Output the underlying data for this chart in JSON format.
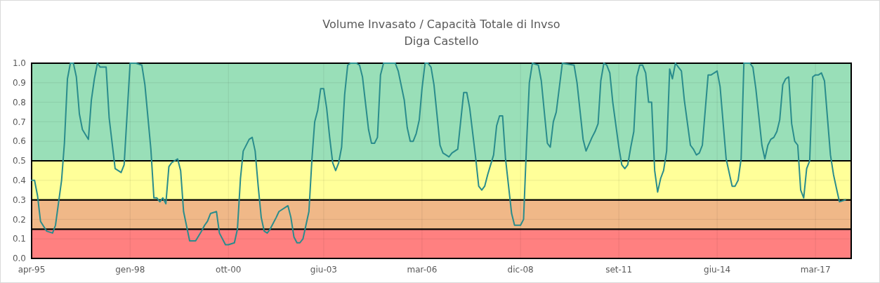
{
  "chart_data": {
    "type": "line",
    "title": "Volume Invasato / Capacità Totale di Invso",
    "subtitle": "Diga Castello",
    "x": [
      "1995-04",
      "1995-05",
      "1995-06",
      "1995-07",
      "1995-09",
      "1995-11",
      "1995-12",
      "1996-02",
      "1996-03",
      "1996-04",
      "1996-05",
      "1996-06",
      "1996-07",
      "1996-08",
      "1996-09",
      "1996-11",
      "1996-12",
      "1997-01",
      "1997-02",
      "1997-03",
      "1997-04",
      "1997-05",
      "1997-06",
      "1997-08",
      "1997-09",
      "1997-10",
      "1997-11",
      "1998-01",
      "1998-03",
      "1998-05",
      "1998-06",
      "1998-08",
      "1998-09",
      "1998-10",
      "1998-11",
      "1998-12",
      "1999-01",
      "1999-02",
      "1999-03",
      "1999-05",
      "1999-06",
      "1999-07",
      "1999-09",
      "1999-11",
      "2000-01",
      "2000-02",
      "2000-03",
      "2000-04",
      "2000-06",
      "2000-07",
      "2000-09",
      "2000-10",
      "2000-12",
      "2001-01",
      "2001-02",
      "2001-03",
      "2001-05",
      "2001-06",
      "2001-07",
      "2001-08",
      "2001-09",
      "2001-10",
      "2001-11",
      "2001-12",
      "2002-02",
      "2002-03",
      "2002-06",
      "2002-07",
      "2002-08",
      "2002-09",
      "2002-10",
      "2002-11",
      "2003-01",
      "2003-02",
      "2003-03",
      "2003-04",
      "2003-05",
      "2003-06",
      "2003-07",
      "2003-08",
      "2003-09",
      "2003-10",
      "2003-11",
      "2003-12",
      "2004-01",
      "2004-02",
      "2004-03",
      "2004-05",
      "2004-06",
      "2004-07",
      "2004-09",
      "2004-10",
      "2004-11",
      "2004-12",
      "2005-01",
      "2005-02",
      "2005-06",
      "2005-07",
      "2005-09",
      "2005-10",
      "2005-11",
      "2005-12",
      "2006-01",
      "2006-02",
      "2006-03",
      "2006-04",
      "2006-05",
      "2006-06",
      "2006-07",
      "2006-09",
      "2006-10",
      "2006-11",
      "2006-12",
      "2007-01",
      "2007-03",
      "2007-05",
      "2007-06",
      "2007-07",
      "2007-09",
      "2007-10",
      "2007-11",
      "2007-12",
      "2008-01",
      "2008-03",
      "2008-04",
      "2008-05",
      "2008-06",
      "2008-07",
      "2008-09",
      "2008-10",
      "2008-12",
      "2009-01",
      "2009-02",
      "2009-03",
      "2009-04",
      "2009-06",
      "2009-07",
      "2009-09",
      "2009-10",
      "2009-11",
      "2009-12",
      "2010-02",
      "2010-06",
      "2010-07",
      "2010-09",
      "2010-10",
      "2010-12",
      "2011-01",
      "2011-02",
      "2011-03",
      "2011-04",
      "2011-05",
      "2011-06",
      "2011-07",
      "2011-09",
      "2011-10",
      "2011-11",
      "2011-12",
      "2012-01",
      "2012-02",
      "2012-03",
      "2012-04",
      "2012-05",
      "2012-06",
      "2012-07",
      "2012-08",
      "2012-09",
      "2012-10",
      "2012-11",
      "2012-12",
      "2013-01",
      "2013-02",
      "2013-03",
      "2013-04",
      "2013-05",
      "2013-06",
      "2013-07",
      "2013-09",
      "2013-10",
      "2013-11",
      "2013-12",
      "2014-01",
      "2014-03",
      "2014-04",
      "2014-06",
      "2014-07",
      "2014-09",
      "2014-11",
      "2014-12",
      "2015-01",
      "2015-02",
      "2015-03",
      "2015-05",
      "2015-06",
      "2015-07",
      "2015-09",
      "2015-10",
      "2015-11",
      "2015-12",
      "2016-01",
      "2016-02",
      "2016-03",
      "2016-04",
      "2016-05",
      "2016-06",
      "2016-07",
      "2016-08",
      "2016-09",
      "2016-10",
      "2016-11",
      "2016-12",
      "2017-01",
      "2017-02",
      "2017-03",
      "2017-04",
      "2017-05",
      "2017-06",
      "2017-08",
      "2017-09",
      "2017-10",
      "2017-11",
      "2018-01"
    ],
    "series": [
      {
        "color": "#2a8c8c",
        "values": [
          0.4,
          0.4,
          0.32,
          0.19,
          0.14,
          0.13,
          0.17,
          0.4,
          0.59,
          0.92,
          1.0,
          1.0,
          0.93,
          0.74,
          0.66,
          0.61,
          0.81,
          0.92,
          1.0,
          0.98,
          0.98,
          0.98,
          0.72,
          0.46,
          0.45,
          0.44,
          0.48,
          1.0,
          1.0,
          0.99,
          0.89,
          0.56,
          0.31,
          0.31,
          0.29,
          0.31,
          0.28,
          0.47,
          0.49,
          0.51,
          0.45,
          0.24,
          0.09,
          0.09,
          0.14,
          0.17,
          0.19,
          0.23,
          0.24,
          0.13,
          0.07,
          0.07,
          0.08,
          0.15,
          0.41,
          0.55,
          0.61,
          0.62,
          0.55,
          0.37,
          0.21,
          0.14,
          0.13,
          0.15,
          0.21,
          0.24,
          0.27,
          0.21,
          0.11,
          0.08,
          0.08,
          0.1,
          0.24,
          0.51,
          0.7,
          0.76,
          0.87,
          0.87,
          0.77,
          0.62,
          0.49,
          0.45,
          0.49,
          0.57,
          0.84,
          0.99,
          1.0,
          1.0,
          0.99,
          0.93,
          0.66,
          0.59,
          0.59,
          0.62,
          0.94,
          1.0,
          1.0,
          0.96,
          0.81,
          0.67,
          0.6,
          0.6,
          0.64,
          0.71,
          0.87,
          1.0,
          1.0,
          0.98,
          0.89,
          0.58,
          0.54,
          0.53,
          0.52,
          0.54,
          0.56,
          0.85,
          0.85,
          0.77,
          0.51,
          0.37,
          0.35,
          0.37,
          0.43,
          0.53,
          0.68,
          0.73,
          0.73,
          0.51,
          0.23,
          0.17,
          0.17,
          0.2,
          0.59,
          0.9,
          1.0,
          0.99,
          0.91,
          0.59,
          0.57,
          0.7,
          0.75,
          1.0,
          0.99,
          0.9,
          0.61,
          0.55,
          0.62,
          0.65,
          0.69,
          0.91,
          1.0,
          0.99,
          0.95,
          0.8,
          0.57,
          0.48,
          0.46,
          0.48,
          0.57,
          0.65,
          0.93,
          0.99,
          0.99,
          0.95,
          0.8,
          0.8,
          0.45,
          0.34,
          0.41,
          0.45,
          0.55,
          0.97,
          0.92,
          1.0,
          0.98,
          0.96,
          0.81,
          0.58,
          0.56,
          0.53,
          0.54,
          0.58,
          0.94,
          0.94,
          0.96,
          0.88,
          0.51,
          0.37,
          0.37,
          0.4,
          0.51,
          1.0,
          1.0,
          0.98,
          0.87,
          0.58,
          0.51,
          0.58,
          0.61,
          0.62,
          0.65,
          0.71,
          0.89,
          0.92,
          0.93,
          0.69,
          0.6,
          0.58,
          0.35,
          0.31,
          0.46,
          0.5,
          0.93,
          0.94,
          0.94,
          0.95,
          0.91,
          0.53,
          0.43,
          0.36,
          0.29,
          0.3
        ]
      }
    ],
    "xlim": [
      "1995-04",
      "2018-03"
    ],
    "xticks": [
      {
        "value": "1995-04",
        "label": "apr-95"
      },
      {
        "value": "1998-01",
        "label": "gen-98"
      },
      {
        "value": "2000-10",
        "label": "ott-00"
      },
      {
        "value": "2003-06",
        "label": "giu-03"
      },
      {
        "value": "2006-03",
        "label": "mar-06"
      },
      {
        "value": "2008-12",
        "label": "dic-08"
      },
      {
        "value": "2011-09",
        "label": "set-11"
      },
      {
        "value": "2014-06",
        "label": "giu-14"
      },
      {
        "value": "2017-03",
        "label": "mar-17"
      }
    ],
    "ylim": [
      0,
      1
    ],
    "yticks": [
      {
        "value": 0,
        "label": "0.0"
      },
      0.1,
      0.2,
      0.3,
      0.4,
      0.5,
      0.6,
      0.7,
      0.8,
      0.9,
      {
        "value": 1,
        "label": "1.0"
      }
    ],
    "bands": [
      {
        "axis": "y",
        "from": 0,
        "to": 0.15,
        "color": "#ff8080"
      },
      {
        "axis": "y",
        "from": 0.15,
        "to": 0.3,
        "color": "#f0b888"
      },
      {
        "axis": "y",
        "from": 0.3,
        "to": 0.5,
        "color": "#ffff99"
      },
      {
        "axis": "y",
        "from": 0.5,
        "to": 1,
        "color": "#99dfb8"
      }
    ],
    "grid": true,
    "marker": "none",
    "line_style": "solid"
  }
}
